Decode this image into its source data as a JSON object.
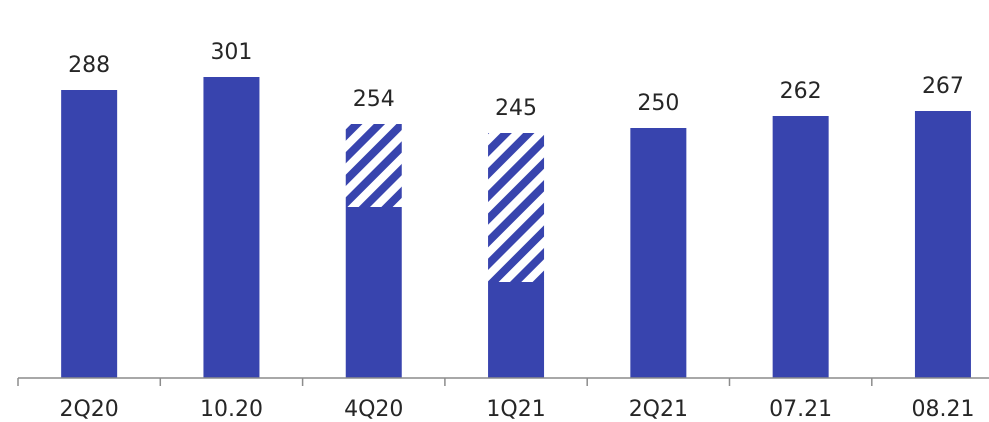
{
  "chart_data": {
    "type": "bar",
    "categories": [
      "2Q20",
      "10.20",
      "4Q20",
      "1Q21",
      "2Q21",
      "07.21",
      "08.21"
    ],
    "values": [
      288,
      301,
      254,
      245,
      250,
      262,
      267
    ],
    "solid_values": [
      288,
      301,
      171,
      96,
      250,
      262,
      267
    ],
    "hatched_values": [
      0,
      0,
      83,
      149,
      0,
      0,
      0
    ],
    "title": "",
    "xlabel": "",
    "ylabel": "",
    "ylim": [
      0,
      330
    ],
    "grid": false,
    "legend": "none",
    "colors": {
      "bar": "#3844AE",
      "hatch_stripe": "#3844AE",
      "hatch_background": "#ffffff",
      "axis": "#8C8C8C",
      "text": "#262626"
    }
  }
}
